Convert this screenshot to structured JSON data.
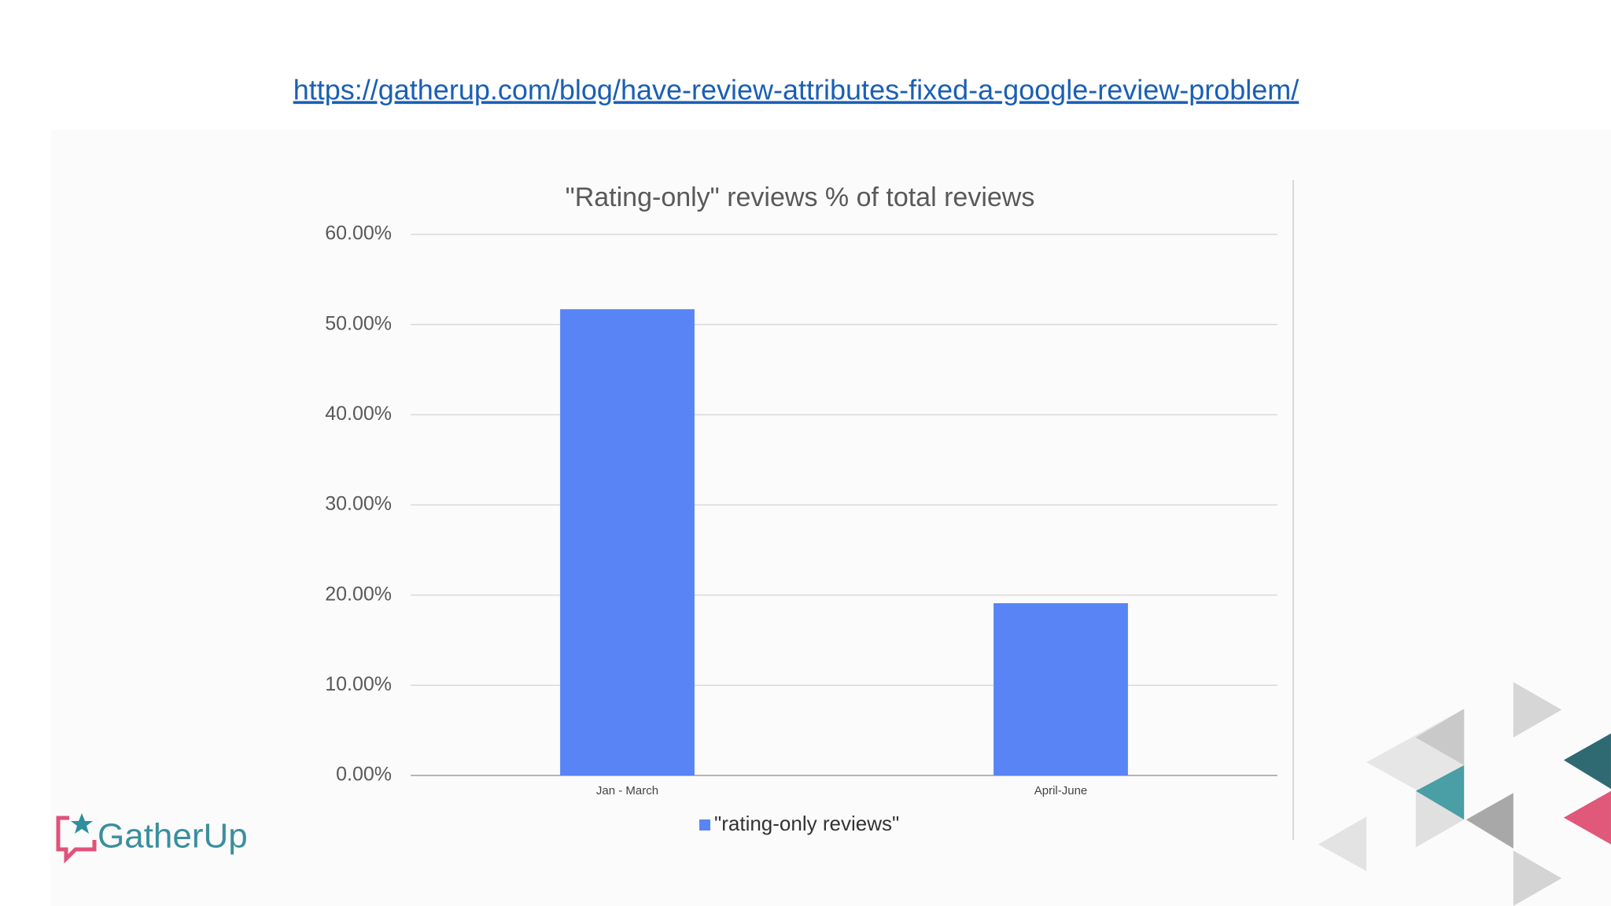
{
  "link": "https://gatherup.com/blog/have-review-attributes-fixed-a-google-review-problem/",
  "logo": "GatherUp",
  "chart_data": {
    "type": "bar",
    "title": "\"Rating-only\" reviews % of total reviews",
    "categories": [
      "Jan - March",
      "April-June"
    ],
    "series": [
      {
        "name": "\"rating-only reviews\"",
        "color": "#5884f5",
        "values": [
          51.7,
          19.1
        ]
      }
    ],
    "ylim": [
      0,
      60
    ],
    "yticks": [
      {
        "value": 0,
        "label": "0.00%"
      },
      {
        "value": 10,
        "label": "10.00%"
      },
      {
        "value": 20,
        "label": "20.00%"
      },
      {
        "value": 30,
        "label": "30.00%"
      },
      {
        "value": 40,
        "label": "40.00%"
      },
      {
        "value": 50,
        "label": "50.00%"
      },
      {
        "value": 60,
        "label": "60.00%"
      }
    ],
    "grid": true,
    "legend": "bottom"
  }
}
